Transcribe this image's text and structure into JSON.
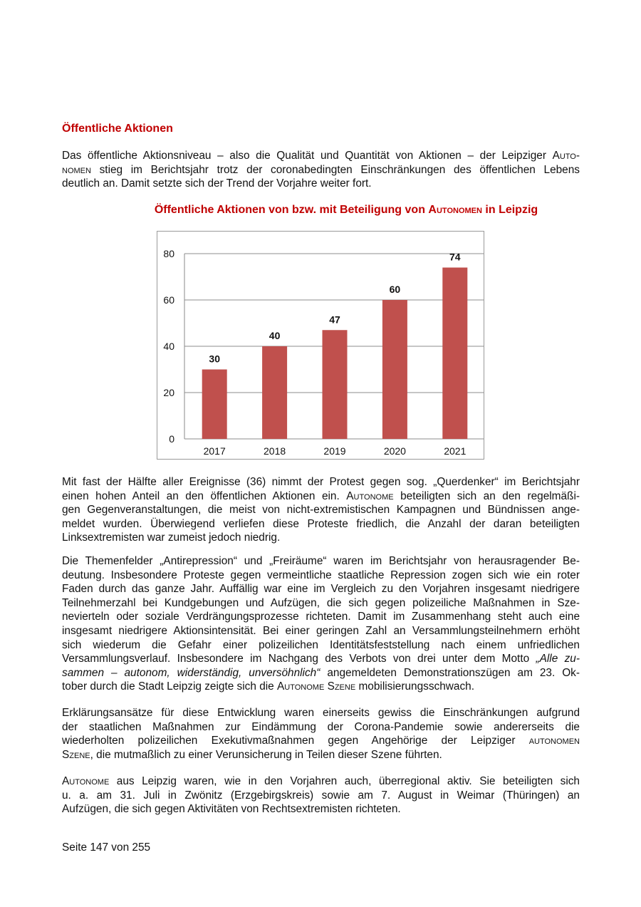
{
  "heading": "Öffentliche Aktionen",
  "paragraphs": [
    [
      [
        "Das öffentliche Aktionsniveau – also die Qualität und Quantität von Aktionen – der Leipziger ",
        {
          "sc": "Auto-"
        }
      ],
      [
        {
          "sc": "nomen"
        },
        " stieg im Berichtsjahr trotz der coronabedingten Einschränkungen des öffentlichen Lebens"
      ],
      [
        "deutlich an. Damit setzte sich der Trend der Vorjahre weiter fort."
      ]
    ],
    [
      [
        "Mit fast der Hälfte aller Ereignisse (36) nimmt der Protest gegen sog. „Querdenker“ im Berichtsjahr"
      ],
      [
        "einen hohen Anteil an den öffentlichen Aktionen ein. ",
        {
          "sc": "Autonome"
        },
        " beteiligten sich an den regelmäßi-"
      ],
      [
        "gen Gegenveranstaltungen, die meist von nicht-extremistischen Kampagnen und Bündnissen ange-"
      ],
      [
        "meldet wurden. Überwiegend verliefen diese Proteste friedlich, die Anzahl der daran beteiligten"
      ],
      [
        "Linksextremisten war zumeist jedoch niedrig."
      ]
    ],
    [
      [
        "Die Themenfelder „Antirepression“ und „Freiräume“ waren im Berichtsjahr von herausragender Be-"
      ],
      [
        "deutung. Insbesondere Proteste gegen vermeintliche staatliche Repression zogen sich wie ein roter"
      ],
      [
        "Faden durch das ganze Jahr. Auffällig war eine im Vergleich zu den Vorjahren insgesamt niedrigere"
      ],
      [
        "Teilnehmerzahl bei Kundgebungen und Aufzügen, die sich gegen polizeiliche Maßnahmen in Sze-"
      ],
      [
        "nevierteln oder soziale Verdrängungsprozesse richteten. Damit im Zusammenhang steht auch eine"
      ],
      [
        "insgesamt niedrigere Aktionsintensität. Bei einer geringen Zahl an Versammlungsteilnehmern erhöht"
      ],
      [
        "sich wiederum die Gefahr einer polizeilichen Identitätsfeststellung nach einem unfriedlichen"
      ],
      [
        "Versammlungsverlauf. Insbesondere im Nachgang des Verbots von drei unter dem Motto ",
        {
          "i": "„Alle zu-"
        }
      ],
      [
        {
          "i": "sammen – autonom, widerständig, unversöhnlich“"
        },
        " angemeldeten Demonstrationszügen am 23. Ok-"
      ],
      [
        "tober durch die Stadt Leipzig zeigte sich die ",
        {
          "sc": "Autonome Szene"
        },
        " mobilisierungsschwach."
      ]
    ],
    [
      [
        "Erklärungsansätze für diese Entwicklung waren einerseits gewiss die Einschränkungen aufgrund"
      ],
      [
        "der staatlichen Maßnahmen zur Eindämmung der Corona-Pandemie sowie andererseits die"
      ],
      [
        "wiederholten polizeilichen Exekutivmaßnahmen gegen Angehörige der Leipziger ",
        {
          "sc": "autonomen"
        }
      ],
      [
        {
          "sc": "Szene"
        },
        ", die mutmaßlich zu einer Verunsicherung in Teilen dieser Szene führten."
      ]
    ],
    [
      [
        {
          "sc": "Autonome"
        },
        " aus Leipzig waren, wie in den Vorjahren auch, überregional aktiv. Sie beteiligten sich"
      ],
      [
        "u. a. am 31. Juli in Zwönitz (Erzgebirgskreis) sowie am 7. August in Weimar (Thüringen) an"
      ],
      [
        "Aufzügen, die sich gegen Aktivitäten von Rechtsextremisten richteten."
      ]
    ]
  ],
  "chart_data": {
    "type": "bar",
    "title_parts": [
      "Öffentliche Aktionen von bzw. mit Beteiligung von ",
      {
        "sc": "Autonomen"
      },
      " in Leipzig"
    ],
    "categories": [
      "2017",
      "2018",
      "2019",
      "2020",
      "2021"
    ],
    "values": [
      30,
      40,
      47,
      60,
      74
    ],
    "ylim": [
      0,
      80
    ],
    "yticks": [
      0,
      20,
      40,
      60,
      80
    ],
    "xlabel": "",
    "ylabel": "",
    "grid": true,
    "bar_color": "#c0504d"
  },
  "footer": "Seite 147 von 255"
}
